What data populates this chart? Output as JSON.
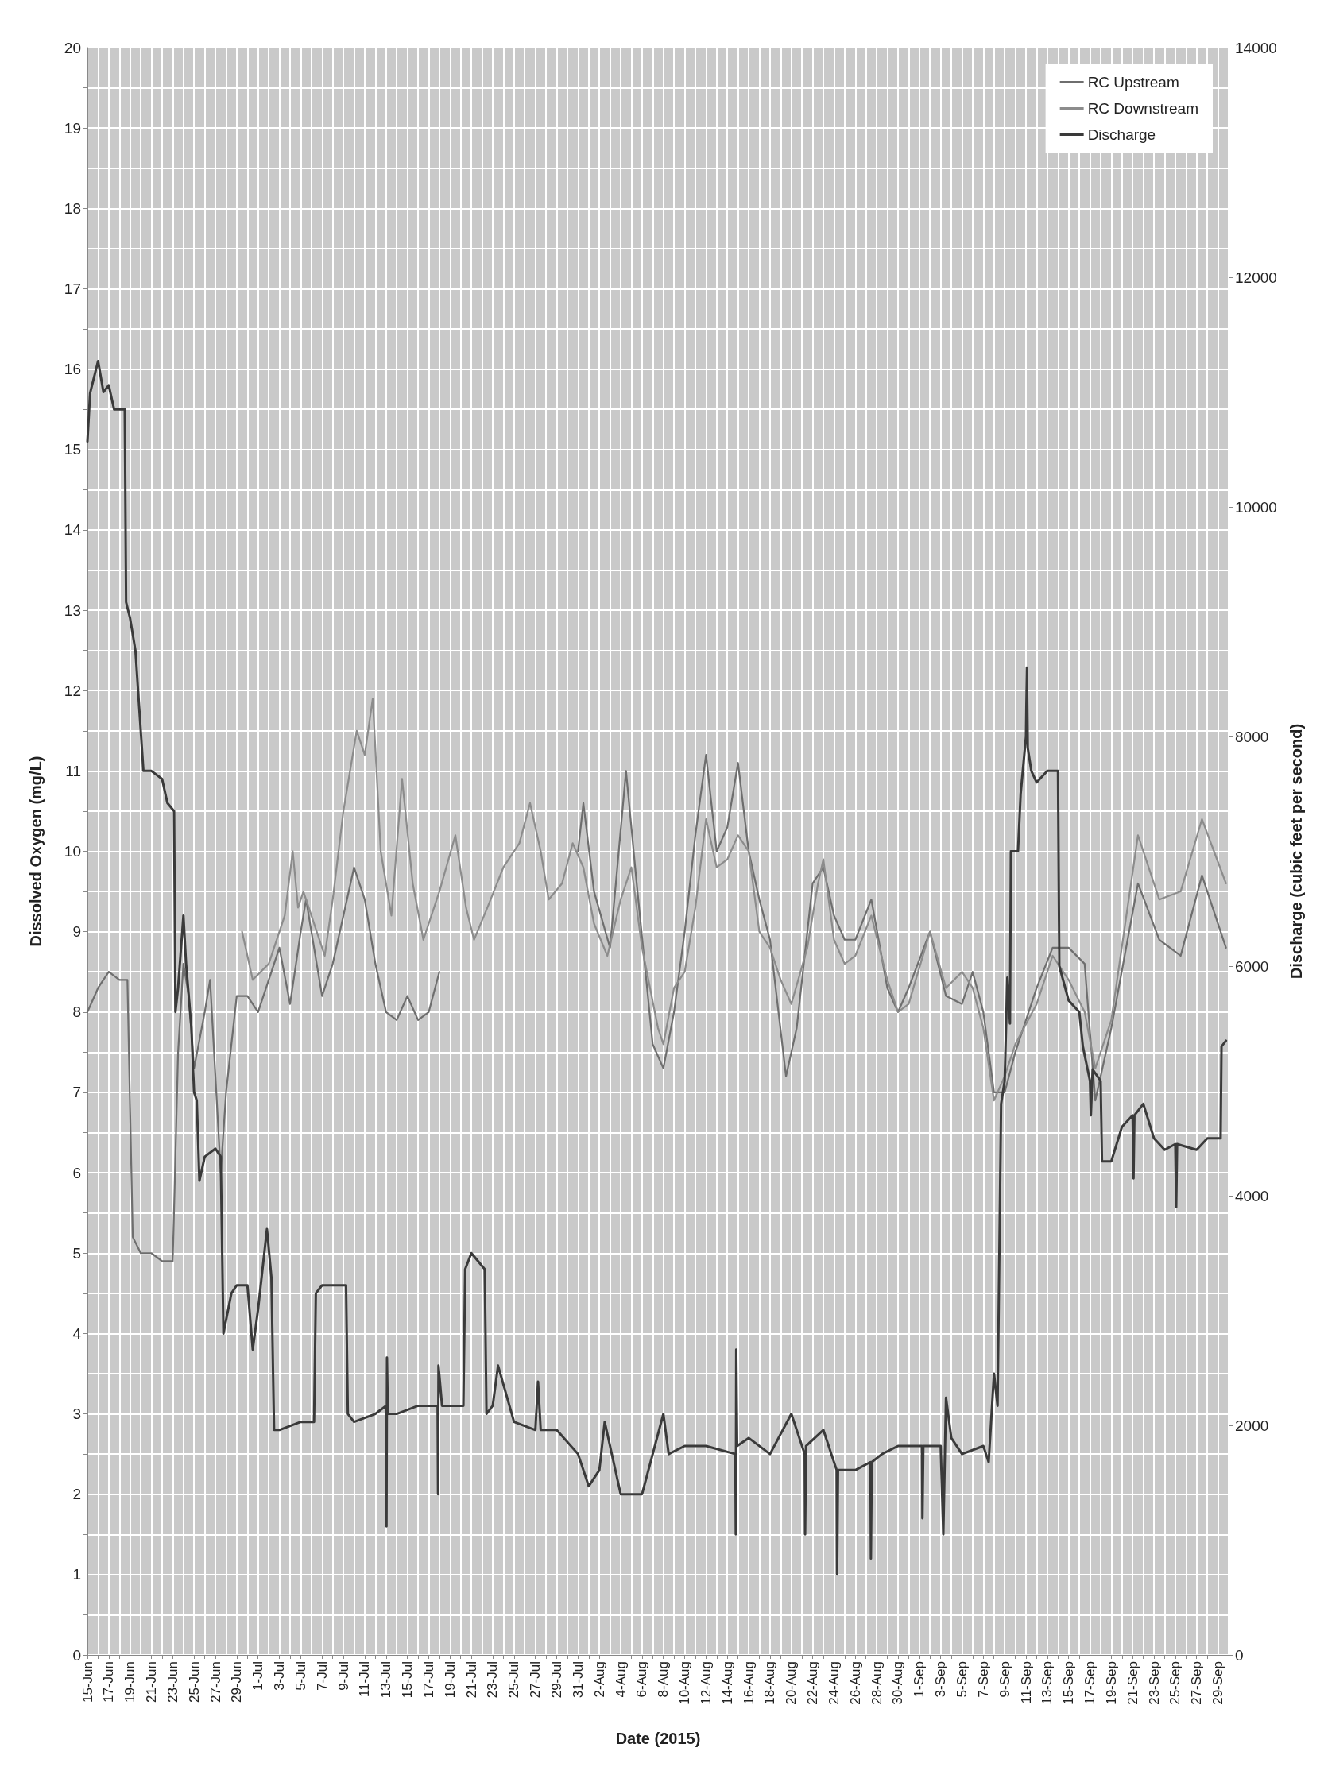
{
  "chart_data": {
    "type": "line",
    "xlabel": "Date (2015)",
    "ylabel": "Dissolved Oxygen (mg/L)",
    "y2label": "Discharge (cubic feet per second)",
    "xlim": [
      "2015-06-15",
      "2015-09-30"
    ],
    "xticks": [
      {
        "value": "2015-06-15",
        "label": "15-Jun"
      },
      {
        "value": "2015-06-16",
        "label": null
      },
      {
        "value": "2015-06-17",
        "label": "17-Jun"
      },
      {
        "value": "2015-06-18",
        "label": null
      },
      {
        "value": "2015-06-19",
        "label": "19-Jun"
      },
      {
        "value": "2015-06-20",
        "label": null
      },
      {
        "value": "2015-06-21",
        "label": "21-Jun"
      },
      {
        "value": "2015-06-22",
        "label": null
      },
      {
        "value": "2015-06-23",
        "label": "23-Jun"
      },
      {
        "value": "2015-06-24",
        "label": null
      },
      {
        "value": "2015-06-25",
        "label": "25-Jun"
      },
      {
        "value": "2015-06-26",
        "label": null
      },
      {
        "value": "2015-06-27",
        "label": "27-Jun"
      },
      {
        "value": "2015-06-28",
        "label": null
      },
      {
        "value": "2015-06-29",
        "label": "29-Jun"
      },
      {
        "value": "2015-06-30",
        "label": null
      },
      {
        "value": "2015-07-01",
        "label": "1-Jul"
      },
      {
        "value": "2015-07-02",
        "label": null
      },
      {
        "value": "2015-07-03",
        "label": "3-Jul"
      },
      {
        "value": "2015-07-04",
        "label": null
      },
      {
        "value": "2015-07-05",
        "label": "5-Jul"
      },
      {
        "value": "2015-07-06",
        "label": null
      },
      {
        "value": "2015-07-07",
        "label": "7-Jul"
      },
      {
        "value": "2015-07-08",
        "label": null
      },
      {
        "value": "2015-07-09",
        "label": "9-Jul"
      },
      {
        "value": "2015-07-10",
        "label": null
      },
      {
        "value": "2015-07-11",
        "label": "11-Jul"
      },
      {
        "value": "2015-07-12",
        "label": null
      },
      {
        "value": "2015-07-13",
        "label": "13-Jul"
      },
      {
        "value": "2015-07-14",
        "label": null
      },
      {
        "value": "2015-07-15",
        "label": "15-Jul"
      },
      {
        "value": "2015-07-16",
        "label": null
      },
      {
        "value": "2015-07-17",
        "label": "17-Jul"
      },
      {
        "value": "2015-07-18",
        "label": null
      },
      {
        "value": "2015-07-19",
        "label": "19-Jul"
      },
      {
        "value": "2015-07-20",
        "label": null
      },
      {
        "value": "2015-07-21",
        "label": "21-Jul"
      },
      {
        "value": "2015-07-22",
        "label": null
      },
      {
        "value": "2015-07-23",
        "label": "23-Jul"
      },
      {
        "value": "2015-07-24",
        "label": null
      },
      {
        "value": "2015-07-25",
        "label": "25-Jul"
      },
      {
        "value": "2015-07-26",
        "label": null
      },
      {
        "value": "2015-07-27",
        "label": "27-Jul"
      },
      {
        "value": "2015-07-28",
        "label": null
      },
      {
        "value": "2015-07-29",
        "label": "29-Jul"
      },
      {
        "value": "2015-07-30",
        "label": null
      },
      {
        "value": "2015-07-31",
        "label": "31-Jul"
      },
      {
        "value": "2015-08-01",
        "label": null
      },
      {
        "value": "2015-08-02",
        "label": "2-Aug"
      },
      {
        "value": "2015-08-03",
        "label": null
      },
      {
        "value": "2015-08-04",
        "label": "4-Aug"
      },
      {
        "value": "2015-08-05",
        "label": null
      },
      {
        "value": "2015-08-06",
        "label": "6-Aug"
      },
      {
        "value": "2015-08-07",
        "label": null
      },
      {
        "value": "2015-08-08",
        "label": "8-Aug"
      },
      {
        "value": "2015-08-09",
        "label": null
      },
      {
        "value": "2015-08-10",
        "label": "10-Aug"
      },
      {
        "value": "2015-08-11",
        "label": null
      },
      {
        "value": "2015-08-12",
        "label": "12-Aug"
      },
      {
        "value": "2015-08-13",
        "label": null
      },
      {
        "value": "2015-08-14",
        "label": "14-Aug"
      },
      {
        "value": "2015-08-15",
        "label": null
      },
      {
        "value": "2015-08-16",
        "label": "16-Aug"
      },
      {
        "value": "2015-08-17",
        "label": null
      },
      {
        "value": "2015-08-18",
        "label": "18-Aug"
      },
      {
        "value": "2015-08-19",
        "label": null
      },
      {
        "value": "2015-08-20",
        "label": "20-Aug"
      },
      {
        "value": "2015-08-21",
        "label": null
      },
      {
        "value": "2015-08-22",
        "label": "22-Aug"
      },
      {
        "value": "2015-08-23",
        "label": null
      },
      {
        "value": "2015-08-24",
        "label": "24-Aug"
      },
      {
        "value": "2015-08-25",
        "label": null
      },
      {
        "value": "2015-08-26",
        "label": "26-Aug"
      },
      {
        "value": "2015-08-27",
        "label": null
      },
      {
        "value": "2015-08-28",
        "label": "28-Aug"
      },
      {
        "value": "2015-08-29",
        "label": null
      },
      {
        "value": "2015-08-30",
        "label": "30-Aug"
      },
      {
        "value": "2015-08-31",
        "label": null
      },
      {
        "value": "2015-09-01",
        "label": "1-Sep"
      },
      {
        "value": "2015-09-02",
        "label": null
      },
      {
        "value": "2015-09-03",
        "label": "3-Sep"
      },
      {
        "value": "2015-09-04",
        "label": null
      },
      {
        "value": "2015-09-05",
        "label": "5-Sep"
      },
      {
        "value": "2015-09-06",
        "label": null
      },
      {
        "value": "2015-09-07",
        "label": "7-Sep"
      },
      {
        "value": "2015-09-08",
        "label": null
      },
      {
        "value": "2015-09-09",
        "label": "9-Sep"
      },
      {
        "value": "2015-09-10",
        "label": null
      },
      {
        "value": "2015-09-11",
        "label": "11-Sep"
      },
      {
        "value": "2015-09-12",
        "label": null
      },
      {
        "value": "2015-09-13",
        "label": "13-Sep"
      },
      {
        "value": "2015-09-14",
        "label": null
      },
      {
        "value": "2015-09-15",
        "label": "15-Sep"
      },
      {
        "value": "2015-09-16",
        "label": null
      },
      {
        "value": "2015-09-17",
        "label": "17-Sep"
      },
      {
        "value": "2015-09-18",
        "label": null
      },
      {
        "value": "2015-09-19",
        "label": "19-Sep"
      },
      {
        "value": "2015-09-20",
        "label": null
      },
      {
        "value": "2015-09-21",
        "label": "21-Sep"
      },
      {
        "value": "2015-09-22",
        "label": null
      },
      {
        "value": "2015-09-23",
        "label": "23-Sep"
      },
      {
        "value": "2015-09-24",
        "label": null
      },
      {
        "value": "2015-09-25",
        "label": "25-Sep"
      },
      {
        "value": "2015-09-26",
        "label": null
      },
      {
        "value": "2015-09-27",
        "label": "27-Sep"
      },
      {
        "value": "2015-09-28",
        "label": null
      },
      {
        "value": "2015-09-29",
        "label": "29-Sep"
      },
      {
        "value": "2015-09-30",
        "label": null
      }
    ],
    "ylim": [
      0,
      20
    ],
    "yticks": [
      0,
      {
        "value": 0.5,
        "label": null
      },
      1,
      {
        "value": 1.5,
        "label": null
      },
      2,
      {
        "value": 2.5,
        "label": null
      },
      3,
      {
        "value": 3.5,
        "label": null
      },
      4,
      {
        "value": 4.5,
        "label": null
      },
      5,
      {
        "value": 5.5,
        "label": null
      },
      6,
      {
        "value": 6.5,
        "label": null
      },
      7,
      {
        "value": 7.5,
        "label": null
      },
      8,
      {
        "value": 8.5,
        "label": null
      },
      9,
      {
        "value": 9.5,
        "label": null
      },
      10,
      {
        "value": 10.5,
        "label": null
      },
      11,
      {
        "value": 11.5,
        "label": null
      },
      12,
      {
        "value": 12.5,
        "label": null
      },
      13,
      {
        "value": 13.5,
        "label": null
      },
      14,
      {
        "value": 14.5,
        "label": null
      },
      15,
      {
        "value": 15.5,
        "label": null
      },
      16,
      {
        "value": 16.5,
        "label": null
      },
      17,
      {
        "value": 17.5,
        "label": null
      },
      18,
      {
        "value": 18.5,
        "label": null
      },
      19,
      {
        "value": 19.5,
        "label": null
      },
      20
    ],
    "y2lim": [
      0,
      14000
    ],
    "y2ticks": [
      0,
      2000,
      4000,
      6000,
      8000,
      10000,
      12000,
      14000
    ],
    "grid": true,
    "legend": "top right",
    "series": [
      {
        "name": "RC Upstream",
        "color": "#6e6e6e",
        "x": [
          "2015-06-15",
          "2015-06-16",
          "2015-06-17",
          "2015-06-18",
          "2015-06-18T18:00",
          "2015-06-19T06:00",
          "2015-06-20",
          "2015-06-21",
          "2015-06-22",
          "2015-06-23",
          "2015-06-23T12:00",
          "2015-06-24",
          "2015-06-24T12:00",
          "2015-06-25",
          "2015-06-26",
          "2015-06-26T12:00",
          "2015-06-27",
          "2015-06-27T12:00",
          "2015-06-28",
          "2015-06-29",
          "2015-06-30",
          "2015-07-01",
          "2015-07-02",
          "2015-07-03",
          "2015-07-04",
          "2015-07-05",
          "2015-07-05T12:00",
          "2015-07-06",
          "2015-07-07",
          "2015-07-08",
          "2015-07-09",
          "2015-07-10",
          "2015-07-11",
          "2015-07-12",
          "2015-07-13",
          "2015-07-14",
          "2015-07-15",
          "2015-07-16",
          "2015-07-17",
          "2015-07-18",
          "2015-07-24",
          "2015-07-31",
          "2015-07-31T12:00",
          "2015-08-01T12:00",
          "2015-08-03",
          "2015-08-04T12:00",
          "2015-08-05T12:00",
          "2015-08-07",
          "2015-08-08",
          "2015-08-09",
          "2015-08-10",
          "2015-08-11",
          "2015-08-12",
          "2015-08-13",
          "2015-08-14",
          "2015-08-15",
          "2015-08-16",
          "2015-08-17",
          "2015-08-18",
          "2015-08-19T12:00",
          "2015-08-20T12:00",
          "2015-08-21T12:00",
          "2015-08-22",
          "2015-08-23",
          "2015-08-24",
          "2015-08-25",
          "2015-08-26",
          "2015-08-27T12:00",
          "2015-08-29",
          "2015-08-30",
          "2015-08-31",
          "2015-09-02",
          "2015-09-03T12:00",
          "2015-09-05",
          "2015-09-06",
          "2015-09-07",
          "2015-09-08",
          "2015-09-09",
          "2015-09-10",
          "2015-09-12",
          "2015-09-13T12:00",
          "2015-09-15",
          "2015-09-16T12:00",
          "2015-09-17T12:00",
          "2015-09-19",
          "2015-09-21T12:00",
          "2015-09-23T12:00",
          "2015-09-25T12:00",
          "2015-09-27T12:00",
          "2015-09-29T18:00"
        ],
        "values": [
          8.0,
          8.3,
          8.5,
          8.4,
          8.4,
          5.2,
          5.0,
          5.0,
          4.9,
          4.9,
          7.5,
          8.6,
          8.2,
          7.3,
          8.0,
          8.4,
          7.2,
          6.0,
          7.0,
          8.2,
          8.2,
          8.0,
          8.4,
          8.8,
          8.1,
          9.0,
          9.4,
          9.0,
          8.2,
          8.6,
          9.2,
          9.8,
          9.4,
          8.6,
          8.0,
          7.9,
          8.2,
          7.9,
          8.0,
          8.5,
          null,
          10.0,
          10.6,
          9.5,
          8.8,
          11.0,
          9.6,
          7.6,
          7.3,
          8.0,
          9.0,
          10.2,
          11.2,
          10.0,
          10.3,
          11.1,
          10.0,
          9.4,
          8.9,
          7.2,
          7.8,
          9.0,
          9.6,
          9.8,
          9.2,
          8.9,
          8.9,
          9.4,
          8.3,
          8.0,
          8.3,
          9.0,
          8.2,
          8.1,
          8.5,
          8.0,
          7.0,
          7.0,
          7.5,
          8.3,
          8.8,
          8.8,
          8.6,
          6.9,
          7.8,
          9.6,
          8.9,
          8.7,
          9.7,
          8.8
        ]
      },
      {
        "name": "RC Downstream",
        "color": "#8c8c8c",
        "x": [
          "2015-06-29T12:00",
          "2015-06-30T12:00",
          "2015-07-02",
          "2015-07-03T12:00",
          "2015-07-04T06:00",
          "2015-07-04T18:00",
          "2015-07-05T06:00",
          "2015-07-06",
          "2015-07-07T06:00",
          "2015-07-08",
          "2015-07-09",
          "2015-07-10T06:00",
          "2015-07-11",
          "2015-07-11T18:00",
          "2015-07-12T12:00",
          "2015-07-13T12:00",
          "2015-07-14T12:00",
          "2015-07-15T12:00",
          "2015-07-16T12:00",
          "2015-07-18",
          "2015-07-19T12:00",
          "2015-07-20T12:00",
          "2015-07-21T06:00",
          "2015-07-22T12:00",
          "2015-07-24",
          "2015-07-25T12:00",
          "2015-07-26T12:00",
          "2015-07-27T12:00",
          "2015-07-28T06:00",
          "2015-07-29T12:00",
          "2015-07-30T12:00",
          "2015-07-31T12:00",
          "2015-08-01T12:00",
          "2015-08-02T18:00",
          "2015-08-04",
          "2015-08-05",
          "2015-08-06",
          "2015-08-07T12:00",
          "2015-08-08",
          "2015-08-09",
          "2015-08-10",
          "2015-08-11",
          "2015-08-12",
          "2015-08-13",
          "2015-08-14",
          "2015-08-15",
          "2015-08-16",
          "2015-08-17",
          "2015-08-18",
          "2015-08-19",
          "2015-08-20",
          "2015-08-21T12:00",
          "2015-08-22T12:00",
          "2015-08-23",
          "2015-08-24",
          "2015-08-25",
          "2015-08-26",
          "2015-08-27T12:00",
          "2015-08-29",
          "2015-08-30",
          "2015-08-31",
          "2015-09-02",
          "2015-09-03T12:00",
          "2015-09-05",
          "2015-09-06",
          "2015-09-07",
          "2015-09-08",
          "2015-09-09",
          "2015-09-10",
          "2015-09-12",
          "2015-09-13T12:00",
          "2015-09-15",
          "2015-09-16T12:00",
          "2015-09-17T12:00",
          "2015-09-19",
          "2015-09-21T12:00",
          "2015-09-23T12:00",
          "2015-09-25T12:00",
          "2015-09-27T12:00",
          "2015-09-29T18:00"
        ],
        "values": [
          9.0,
          8.4,
          8.6,
          9.2,
          10.0,
          9.3,
          9.5,
          9.2,
          8.7,
          9.4,
          10.5,
          11.5,
          11.2,
          11.9,
          10.0,
          9.2,
          10.9,
          9.6,
          8.9,
          9.5,
          10.2,
          9.3,
          8.9,
          9.3,
          9.8,
          10.1,
          10.6,
          10.0,
          9.4,
          9.6,
          10.1,
          9.8,
          9.1,
          8.7,
          9.4,
          9.8,
          8.8,
          7.8,
          7.6,
          8.3,
          8.5,
          9.3,
          10.4,
          9.8,
          9.9,
          10.2,
          10.0,
          9.0,
          8.8,
          8.4,
          8.1,
          8.8,
          9.6,
          9.9,
          8.9,
          8.6,
          8.7,
          9.2,
          8.4,
          8.0,
          8.1,
          9.0,
          8.3,
          8.5,
          8.3,
          7.8,
          6.9,
          7.2,
          7.6,
          8.1,
          8.7,
          8.4,
          8.0,
          7.3,
          7.9,
          10.2,
          9.4,
          9.5,
          10.4,
          9.6
        ]
      },
      {
        "name": "Discharge",
        "color": "#3a3a3a",
        "axis": "y2",
        "x": [
          "2015-06-15",
          "2015-06-15T06:00",
          "2015-06-16",
          "2015-06-16T12:00",
          "2015-06-17",
          "2015-06-17T12:00",
          "2015-06-18T12:00",
          "2015-06-18T15:00",
          "2015-06-19",
          "2015-06-19T12:00",
          "2015-06-20",
          "2015-06-20T06:00",
          "2015-06-21",
          "2015-06-22",
          "2015-06-22T12:00",
          "2015-06-23T03:00",
          "2015-06-23T06:00",
          "2015-06-23T12:00",
          "2015-06-24",
          "2015-06-24T06:00",
          "2015-06-24T18:00",
          "2015-06-25",
          "2015-06-25T06:00",
          "2015-06-25T12:00",
          "2015-06-26",
          "2015-06-27",
          "2015-06-27T12:00",
          "2015-06-27T18:00",
          "2015-06-28T12:00",
          "2015-06-29",
          "2015-06-30",
          "2015-06-30T12:00",
          "2015-07-01",
          "2015-07-01T12:00",
          "2015-07-01T20:00",
          "2015-07-02T06:00",
          "2015-07-02T12:00",
          "2015-07-03",
          "2015-07-05",
          "2015-07-06T06:00",
          "2015-07-06T10:00",
          "2015-07-07",
          "2015-07-08",
          "2015-07-09T06:00",
          "2015-07-09T10:00",
          "2015-07-10",
          "2015-07-12",
          "2015-07-13",
          "2015-07-13T01:00",
          "2015-07-13T02:00",
          "2015-07-13T04:00",
          "2015-07-14",
          "2015-07-16",
          "2015-07-17T20:00",
          "2015-07-17T21:00",
          "2015-07-17T22:00",
          "2015-07-18T06:00",
          "2015-07-19",
          "2015-07-20T06:00",
          "2015-07-20T10:00",
          "2015-07-21",
          "2015-07-22T06:00",
          "2015-07-22T10:00",
          "2015-07-23",
          "2015-07-23T12:00",
          "2015-07-25",
          "2015-07-27",
          "2015-07-27T06:00",
          "2015-07-27T12:00",
          "2015-07-29",
          "2015-07-31",
          "2015-08-01",
          "2015-08-02",
          "2015-08-02T12:00",
          "2015-08-04",
          "2015-08-06",
          "2015-08-08",
          "2015-08-08T12:00",
          "2015-08-10",
          "2015-08-12",
          "2015-08-14T18:00",
          "2015-08-14T19:00",
          "2015-08-14T20:00",
          "2015-08-14T22:00",
          "2015-08-16",
          "2015-08-18",
          "2015-08-20",
          "2015-08-21T06:00",
          "2015-08-21T07:00",
          "2015-08-21T09:00",
          "2015-08-23",
          "2015-08-24T06:00",
          "2015-08-24T07:00",
          "2015-08-24T09:00",
          "2015-08-26",
          "2015-08-27T10:00",
          "2015-08-27T11:00",
          "2015-08-27T13:00",
          "2015-08-28T12:00",
          "2015-08-30",
          "2015-09-01T06:00",
          "2015-09-01T07:00",
          "2015-09-01T09:00",
          "2015-09-03",
          "2015-09-03T06:00",
          "2015-09-03T12:00",
          "2015-09-04",
          "2015-09-05",
          "2015-09-07",
          "2015-09-07T12:00",
          "2015-09-08",
          "2015-09-08T08:00",
          "2015-09-08T16:00",
          "2015-09-09",
          "2015-09-09T06:00",
          "2015-09-09T12:00",
          "2015-09-09T14:00",
          "2015-09-10T06:00",
          "2015-09-10T12:00",
          "2015-09-11",
          "2015-09-11T02:00",
          "2015-09-11T04:00",
          "2015-09-11T12:00",
          "2015-09-12",
          "2015-09-13",
          "2015-09-14",
          "2015-09-14T03:00",
          "2015-09-15",
          "2015-09-16",
          "2015-09-16T08:00",
          "2015-09-17",
          "2015-09-17T02:00",
          "2015-09-17T06:00",
          "2015-09-18",
          "2015-09-18T03:00",
          "2015-09-19",
          "2015-09-20",
          "2015-09-21",
          "2015-09-21T02:00",
          "2015-09-21T04:00",
          "2015-09-22",
          "2015-09-23",
          "2015-09-24",
          "2015-09-25",
          "2015-09-25T02:00",
          "2015-09-25T04:00",
          "2015-09-27",
          "2015-09-28",
          "2015-09-29T06:00",
          "2015-09-29T08:00",
          "2015-09-29T18:00"
        ],
        "values": [
          10570,
          10990,
          11270,
          11000,
          11060,
          10850,
          10850,
          9170,
          9030,
          8750,
          8050,
          7700,
          7700,
          7630,
          7420,
          7350,
          5600,
          5810,
          6440,
          6020,
          5460,
          4900,
          4830,
          4130,
          4340,
          4410,
          4340,
          2800,
          3150,
          3220,
          3220,
          2660,
          3010,
          3430,
          3710,
          3290,
          1960,
          1960,
          2030,
          2030,
          3150,
          3220,
          3220,
          3220,
          2100,
          2030,
          2100,
          2170,
          1120,
          2590,
          2100,
          2100,
          2170,
          2170,
          1400,
          2520,
          2170,
          2170,
          2170,
          3360,
          3500,
          3360,
          2100,
          2170,
          2520,
          2030,
          1960,
          2380,
          1960,
          1960,
          1750,
          1470,
          1610,
          2030,
          1400,
          1400,
          2100,
          1750,
          1820,
          1820,
          1750,
          1050,
          2660,
          1820,
          1890,
          1750,
          2100,
          1750,
          1050,
          1820,
          1960,
          1610,
          700,
          1610,
          1610,
          1680,
          840,
          1680,
          1750,
          1820,
          1820,
          1190,
          1820,
          1820,
          1050,
          2240,
          1890,
          1750,
          1820,
          1680,
          2450,
          2170,
          4800,
          5000,
          5900,
          5500,
          7000,
          7000,
          7500,
          8000,
          8600,
          7900,
          7700,
          7600,
          7700,
          7700,
          6000,
          5700,
          5600,
          5300,
          5000,
          4700,
          5100,
          5000,
          4300,
          4300,
          4600,
          4700,
          4150,
          4700,
          4800,
          4500,
          4400,
          4450,
          3900,
          4450,
          4400,
          4500,
          4500,
          5300,
          5350
        ]
      }
    ]
  }
}
